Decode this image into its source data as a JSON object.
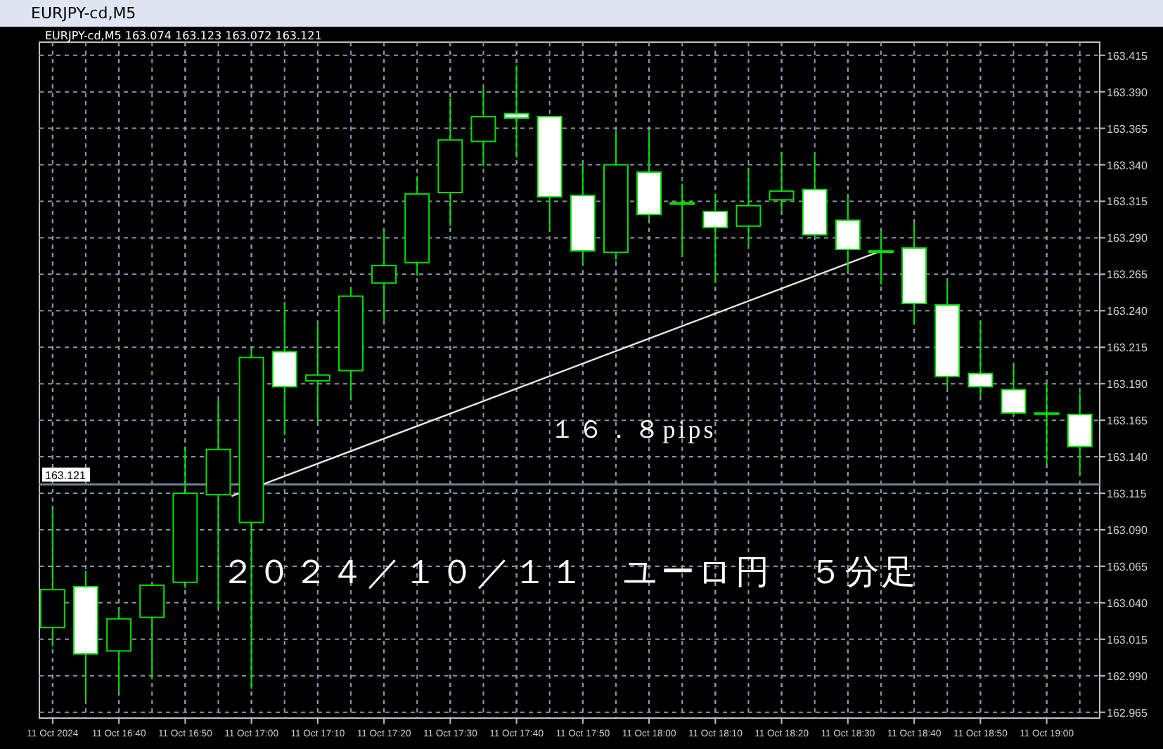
{
  "chart_data": {
    "type": "candlestick",
    "title": "EURJPY-cd,M5",
    "subtitle": "EURJPY-cd,M5  163.074 163.123 163.072 163.121",
    "color": "#00e000",
    "x": [
      "2024-10-11T16:30",
      "2024-10-11T16:35",
      "2024-10-11T16:40",
      "2024-10-11T16:45",
      "2024-10-11T16:50",
      "2024-10-11T16:55",
      "2024-10-11T17:00",
      "2024-10-11T17:05",
      "2024-10-11T17:10",
      "2024-10-11T17:15",
      "2024-10-11T17:20",
      "2024-10-11T17:25",
      "2024-10-11T17:30",
      "2024-10-11T17:35",
      "2024-10-11T17:40",
      "2024-10-11T17:45",
      "2024-10-11T17:50",
      "2024-10-11T17:55",
      "2024-10-11T18:00",
      "2024-10-11T18:05",
      "2024-10-11T18:10",
      "2024-10-11T18:15",
      "2024-10-11T18:20",
      "2024-10-11T18:25",
      "2024-10-11T18:30",
      "2024-10-11T18:35",
      "2024-10-11T18:40",
      "2024-10-11T18:45",
      "2024-10-11T18:50",
      "2024-10-11T18:55",
      "2024-10-11T19:00",
      "2024-10-11T19:05"
    ],
    "ohlc": [
      [
        163.023,
        163.105,
        163.01,
        163.049
      ],
      [
        163.051,
        163.062,
        162.973,
        163.005
      ],
      [
        163.007,
        163.036,
        162.979,
        163.029
      ],
      [
        163.03,
        163.052,
        162.988,
        163.052
      ],
      [
        163.054,
        163.147,
        163.05,
        163.115
      ],
      [
        163.114,
        163.179,
        163.036,
        163.145
      ],
      [
        163.095,
        163.214,
        162.981,
        163.208
      ],
      [
        163.212,
        163.246,
        163.155,
        163.188
      ],
      [
        163.192,
        163.232,
        163.164,
        163.196
      ],
      [
        163.199,
        163.256,
        163.18,
        163.25
      ],
      [
        163.259,
        163.296,
        163.232,
        163.271
      ],
      [
        163.273,
        163.332,
        163.264,
        163.32
      ],
      [
        163.321,
        163.386,
        163.298,
        163.357
      ],
      [
        163.356,
        163.393,
        163.339,
        163.373
      ],
      [
        163.375,
        163.408,
        163.345,
        163.372
      ],
      [
        163.373,
        163.373,
        163.294,
        163.318
      ],
      [
        163.319,
        163.341,
        163.272,
        163.281
      ],
      [
        163.28,
        163.363,
        163.275,
        163.34
      ],
      [
        163.335,
        163.363,
        163.302,
        163.306
      ],
      [
        163.314,
        163.327,
        163.277,
        163.314
      ],
      [
        163.308,
        163.32,
        163.259,
        163.297
      ],
      [
        163.298,
        163.338,
        163.284,
        163.312
      ],
      [
        163.316,
        163.349,
        163.308,
        163.322
      ],
      [
        163.323,
        163.347,
        163.291,
        163.292
      ],
      [
        163.302,
        163.318,
        163.267,
        163.282
      ],
      [
        163.281,
        163.295,
        163.258,
        163.281
      ],
      [
        163.283,
        163.3,
        163.231,
        163.245
      ],
      [
        163.244,
        163.26,
        163.187,
        163.195
      ],
      [
        163.197,
        163.233,
        163.181,
        163.188
      ],
      [
        163.186,
        163.203,
        163.168,
        163.17
      ],
      [
        163.17,
        163.191,
        163.135,
        163.17
      ],
      [
        163.169,
        163.184,
        163.127,
        163.147
      ]
    ],
    "series": [
      {
        "type": "line",
        "color": "#e6e6e6",
        "x": [
          "2024-10-11T16:57",
          "2024-10-11T18:35"
        ],
        "values": [
          163.113,
          163.281
        ]
      }
    ],
    "xlim": [
      "2024-10-11T16:28",
      "2024-10-11T19:08"
    ],
    "xticks": [
      {
        "value": "2024-10-11T16:30",
        "label": "11 Oct 2024"
      },
      {
        "value": "2024-10-11T16:40",
        "label": "11 Oct 16:40"
      },
      {
        "value": "2024-10-11T16:50",
        "label": "11 Oct 16:50"
      },
      {
        "value": "2024-10-11T17:00",
        "label": "11 Oct 17:00"
      },
      {
        "value": "2024-10-11T17:10",
        "label": "11 Oct 17:10"
      },
      {
        "value": "2024-10-11T17:20",
        "label": "11 Oct 17:20"
      },
      {
        "value": "2024-10-11T17:30",
        "label": "11 Oct 17:30"
      },
      {
        "value": "2024-10-11T17:40",
        "label": "11 Oct 17:40"
      },
      {
        "value": "2024-10-11T17:50",
        "label": "11 Oct 17:50"
      },
      {
        "value": "2024-10-11T18:00",
        "label": "11 Oct 18:00"
      },
      {
        "value": "2024-10-11T18:10",
        "label": "11 Oct 18:10"
      },
      {
        "value": "2024-10-11T18:20",
        "label": "11 Oct 18:20"
      },
      {
        "value": "2024-10-11T18:30",
        "label": "11 Oct 18:30"
      },
      {
        "value": "2024-10-11T18:40",
        "label": "11 Oct 18:40"
      },
      {
        "value": "2024-10-11T18:50",
        "label": "11 Oct 18:50"
      },
      {
        "value": "2024-10-11T19:00",
        "label": "11 Oct 19:00"
      }
    ],
    "ylim": [
      162.961,
      163.424
    ],
    "yticks": [
      163.415,
      {
        "value": 163.39,
        "label": "163.390"
      },
      163.365,
      {
        "value": 163.34,
        "label": "163.340"
      },
      163.315,
      {
        "value": 163.29,
        "label": "163.290"
      },
      163.265,
      {
        "value": 163.24,
        "label": "163.240"
      },
      163.215,
      {
        "value": 163.19,
        "label": "163.190"
      },
      163.165,
      {
        "value": 163.14,
        "label": "163.140"
      },
      163.115,
      {
        "value": 163.09,
        "label": "163.090"
      },
      163.065,
      {
        "value": 163.04,
        "label": "163.040"
      },
      163.015,
      {
        "value": 162.99,
        "label": "162.990"
      },
      162.965
    ],
    "ref_lines": [
      {
        "axis": "y",
        "value": 163.121,
        "label": "163.121",
        "color": "#708090"
      }
    ],
    "annotations": [
      "１６．８pips",
      "２０２４／１０／１１　ユーロ円　５分足"
    ],
    "grid": true
  }
}
